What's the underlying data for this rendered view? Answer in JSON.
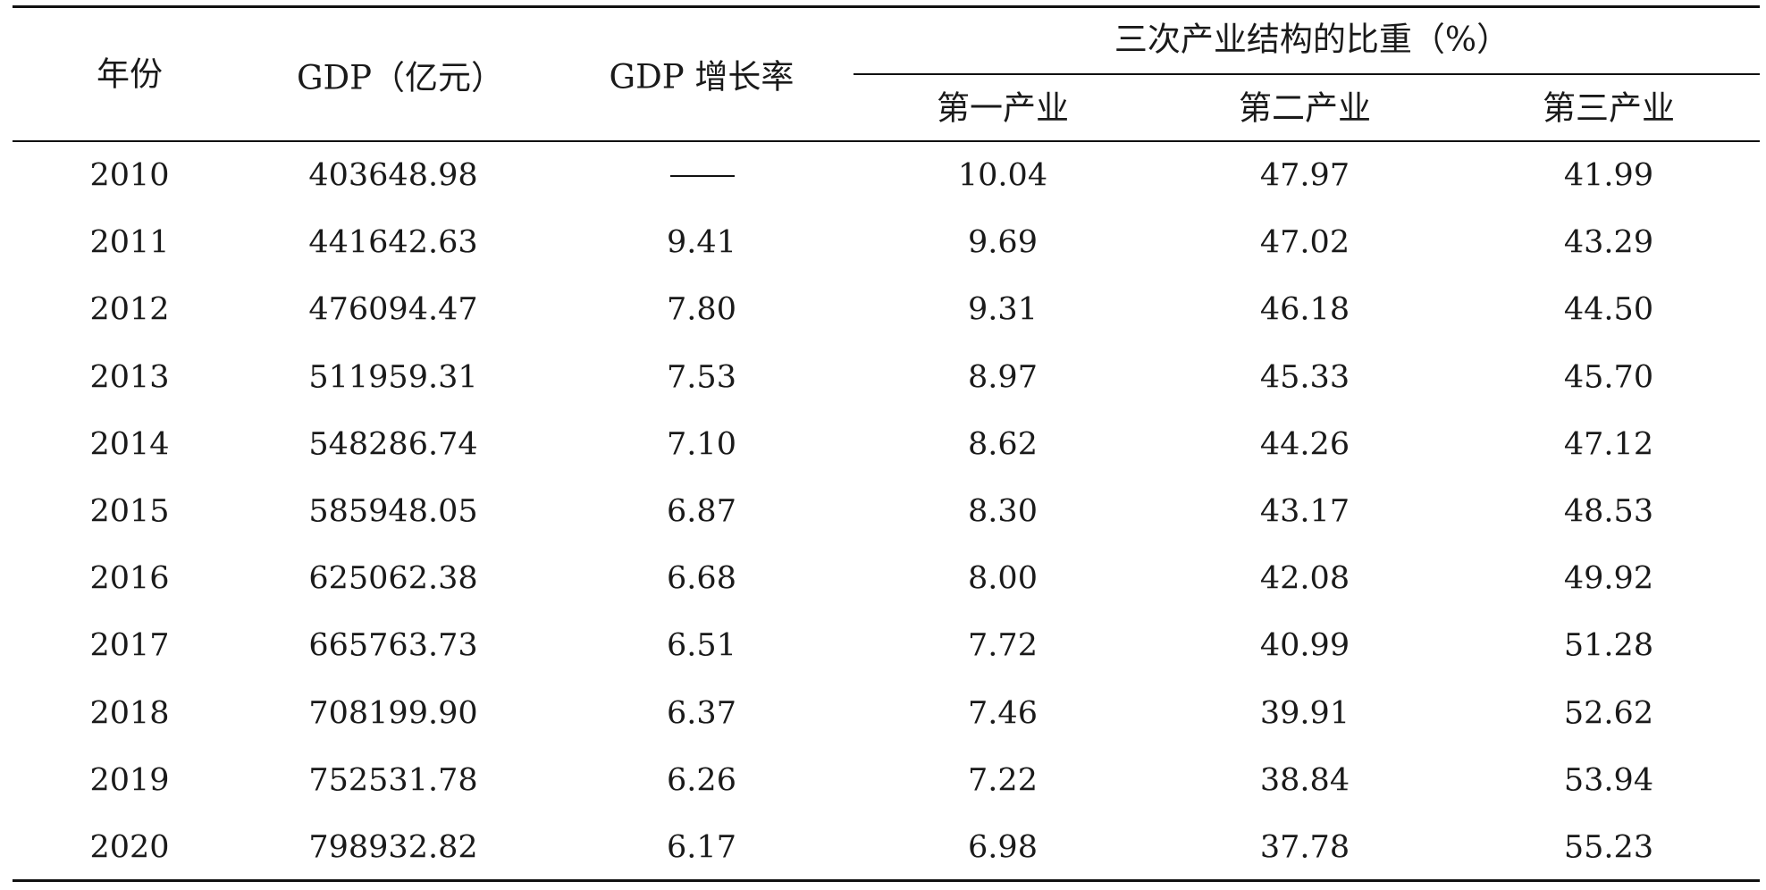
{
  "table": {
    "headers": {
      "year": "年份",
      "gdp": "GDP（亿元）",
      "growth": "GDP 增长率",
      "structure_group": "三次产业结构的比重（%）",
      "primary": "第一产业",
      "secondary": "第二产业",
      "tertiary": "第三产业"
    },
    "rows": [
      {
        "year": "2010",
        "gdp": "403648.98",
        "growth": "",
        "primary": "10.04",
        "secondary": "47.97",
        "tertiary": "41.99"
      },
      {
        "year": "2011",
        "gdp": "441642.63",
        "growth": "9.41",
        "primary": "9.69",
        "secondary": "47.02",
        "tertiary": "43.29"
      },
      {
        "year": "2012",
        "gdp": "476094.47",
        "growth": "7.80",
        "primary": "9.31",
        "secondary": "46.18",
        "tertiary": "44.50"
      },
      {
        "year": "2013",
        "gdp": "511959.31",
        "growth": "7.53",
        "primary": "8.97",
        "secondary": "45.33",
        "tertiary": "45.70"
      },
      {
        "year": "2014",
        "gdp": "548286.74",
        "growth": "7.10",
        "primary": "8.62",
        "secondary": "44.26",
        "tertiary": "47.12"
      },
      {
        "year": "2015",
        "gdp": "585948.05",
        "growth": "6.87",
        "primary": "8.30",
        "secondary": "43.17",
        "tertiary": "48.53"
      },
      {
        "year": "2016",
        "gdp": "625062.38",
        "growth": "6.68",
        "primary": "8.00",
        "secondary": "42.08",
        "tertiary": "49.92"
      },
      {
        "year": "2017",
        "gdp": "665763.73",
        "growth": "6.51",
        "primary": "7.72",
        "secondary": "40.99",
        "tertiary": "51.28"
      },
      {
        "year": "2018",
        "gdp": "708199.90",
        "growth": "6.37",
        "primary": "7.46",
        "secondary": "39.91",
        "tertiary": "52.62"
      },
      {
        "year": "2019",
        "gdp": "752531.78",
        "growth": "6.26",
        "primary": "7.22",
        "secondary": "38.84",
        "tertiary": "53.94"
      },
      {
        "year": "2020",
        "gdp": "798932.82",
        "growth": "6.17",
        "primary": "6.98",
        "secondary": "37.78",
        "tertiary": "55.23"
      }
    ]
  }
}
